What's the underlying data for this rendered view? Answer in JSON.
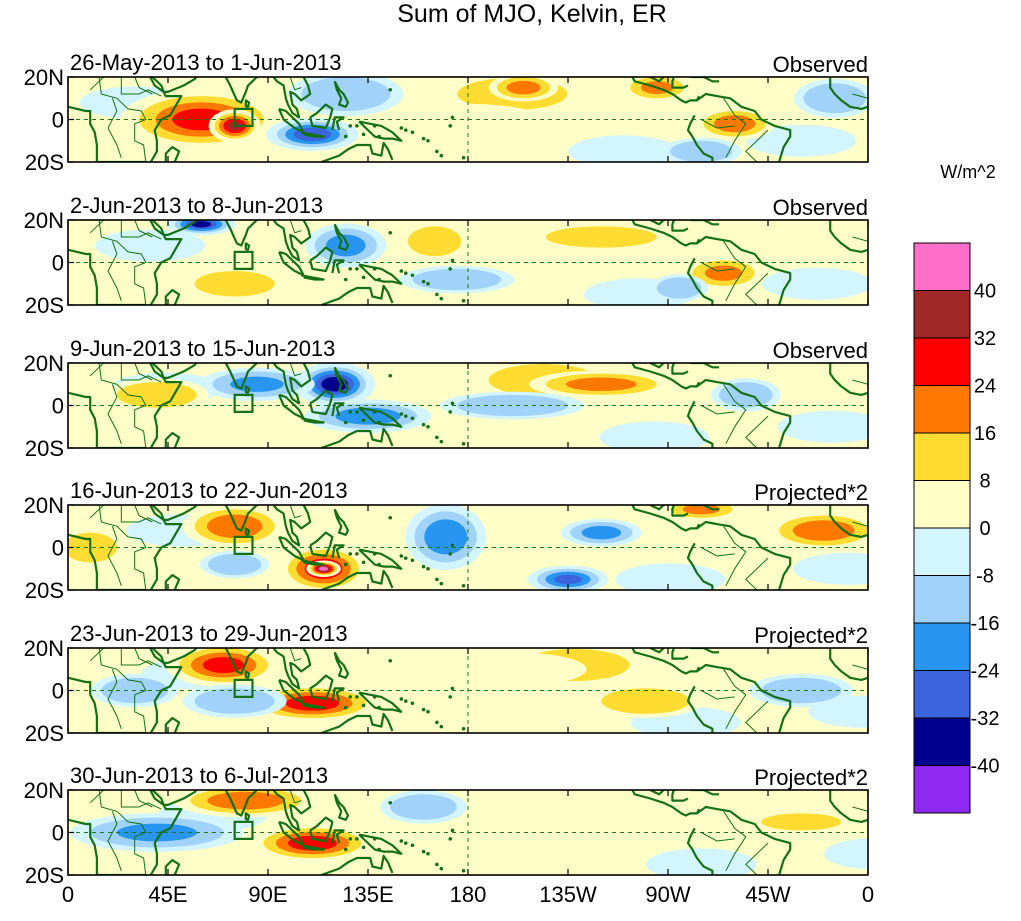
{
  "chart_data": {
    "type": "heatmap",
    "title": "Sum of MJO, Kelvin, ER",
    "units_label": "W/m^2",
    "lat_ticks": [
      "20N",
      "0",
      "20S"
    ],
    "lon_ticks": [
      "0",
      "45E",
      "90E",
      "135E",
      "180",
      "135W",
      "90W",
      "45W",
      "0"
    ],
    "lon_range": [
      0,
      360
    ],
    "lat_range": [
      -20,
      20
    ],
    "colorbar": {
      "levels": [
        -40,
        -32,
        -24,
        -16,
        -8,
        0,
        8,
        16,
        24,
        32,
        40
      ],
      "level_labels": [
        "40",
        "32",
        "24",
        "16",
        "8",
        "0",
        "-8",
        "-16",
        "-24",
        "-32",
        "-40"
      ],
      "colors": [
        "#8f28f0",
        "#00008f",
        "#3c64dc",
        "#2896f0",
        "#a0d2fa",
        "#d2f5ff",
        "#ffffc8",
        "#ffdc32",
        "#ff7800",
        "#ff0000",
        "#a02828",
        "#ff6ec8"
      ]
    },
    "box_marker": {
      "lon": [
        75,
        83
      ],
      "lat": [
        -3,
        5
      ]
    },
    "panels": [
      {
        "date_range": "26-May-2013 to 1-Jun-2013",
        "kind": "Observed",
        "anomalies": [
          {
            "lon": 60,
            "lat": 0,
            "rlon": 28,
            "rlat": 11,
            "value": 26
          },
          {
            "lon": 75,
            "lat": -3,
            "rlon": 9,
            "rlat": 6,
            "value": 33
          },
          {
            "lon": 110,
            "lat": -7,
            "rlon": 16,
            "rlat": 6,
            "value": -30
          },
          {
            "lon": 125,
            "lat": 12,
            "rlon": 20,
            "rlat": 8,
            "value": -12
          },
          {
            "lon": 205,
            "lat": 15,
            "rlon": 12,
            "rlat": 5,
            "value": 18
          },
          {
            "lon": 265,
            "lat": 15,
            "rlon": 12,
            "rlat": 5,
            "value": 16
          },
          {
            "lon": 300,
            "lat": -2,
            "rlon": 14,
            "rlat": 6,
            "value": 20
          },
          {
            "lon": 285,
            "lat": -15,
            "rlon": 14,
            "rlat": 5,
            "value": -12
          },
          {
            "lon": 345,
            "lat": 10,
            "rlon": 14,
            "rlat": 7,
            "value": -14
          },
          {
            "lon": 180,
            "lat": -3,
            "rlon": 30,
            "rlat": 8,
            "value": 6
          }
        ]
      },
      {
        "date_range": "2-Jun-2013 to 8-Jun-2013",
        "kind": "Observed",
        "anomalies": [
          {
            "lon": 60,
            "lat": 18,
            "rlon": 12,
            "rlat": 4,
            "value": -34
          },
          {
            "lon": 125,
            "lat": 8,
            "rlon": 14,
            "rlat": 8,
            "value": -18
          },
          {
            "lon": 165,
            "lat": 10,
            "rlon": 12,
            "rlat": 7,
            "value": 14
          },
          {
            "lon": 240,
            "lat": 12,
            "rlon": 25,
            "rlat": 5,
            "value": 12
          },
          {
            "lon": 175,
            "lat": -8,
            "rlon": 20,
            "rlat": 5,
            "value": -12
          },
          {
            "lon": 295,
            "lat": -5,
            "rlon": 14,
            "rlat": 6,
            "value": 16
          },
          {
            "lon": 275,
            "lat": -12,
            "rlon": 10,
            "rlat": 5,
            "value": -12
          },
          {
            "lon": 75,
            "lat": -10,
            "rlon": 18,
            "rlat": 6,
            "value": 8
          }
        ]
      },
      {
        "date_range": "9-Jun-2013 to 15-Jun-2013",
        "kind": "Observed",
        "anomalies": [
          {
            "lon": 120,
            "lat": 10,
            "rlon": 14,
            "rlat": 8,
            "value": -38
          },
          {
            "lon": 85,
            "lat": 10,
            "rlon": 20,
            "rlat": 6,
            "value": -16
          },
          {
            "lon": 135,
            "lat": -5,
            "rlon": 22,
            "rlat": 6,
            "value": -20
          },
          {
            "lon": 240,
            "lat": 10,
            "rlon": 25,
            "rlat": 5,
            "value": 18
          },
          {
            "lon": 200,
            "lat": 0,
            "rlon": 25,
            "rlat": 5,
            "value": -10
          },
          {
            "lon": 305,
            "lat": 5,
            "rlon": 12,
            "rlat": 6,
            "value": -12
          },
          {
            "lon": 40,
            "lat": 5,
            "rlon": 18,
            "rlat": 6,
            "value": 8
          }
        ]
      },
      {
        "date_range": "16-Jun-2013 to 22-Jun-2013",
        "kind": "Projected*2",
        "anomalies": [
          {
            "lon": 75,
            "lat": 10,
            "rlon": 18,
            "rlat": 8,
            "value": 22
          },
          {
            "lon": 115,
            "lat": -10,
            "rlon": 16,
            "rlat": 9,
            "value": 30
          },
          {
            "lon": 115,
            "lat": -10,
            "rlon": 6,
            "rlat": 3,
            "value": 44
          },
          {
            "lon": 170,
            "lat": 5,
            "rlon": 14,
            "rlat": 12,
            "value": -22
          },
          {
            "lon": 225,
            "lat": -15,
            "rlon": 14,
            "rlat": 5,
            "value": -25
          },
          {
            "lon": 240,
            "lat": 7,
            "rlon": 14,
            "rlat": 5,
            "value": -18
          },
          {
            "lon": 340,
            "lat": 8,
            "rlon": 20,
            "rlat": 7,
            "value": 22
          },
          {
            "lon": 285,
            "lat": 18,
            "rlon": 14,
            "rlat": 4,
            "value": 16
          },
          {
            "lon": 75,
            "lat": -8,
            "rlon": 12,
            "rlat": 5,
            "value": -14
          },
          {
            "lon": 10,
            "lat": 0,
            "rlon": 12,
            "rlat": 7,
            "value": 10
          }
        ]
      },
      {
        "date_range": "23-Jun-2013 to 29-Jun-2013",
        "kind": "Projected*2",
        "anomalies": [
          {
            "lon": 70,
            "lat": 12,
            "rlon": 20,
            "rlat": 8,
            "value": 26
          },
          {
            "lon": 110,
            "lat": -6,
            "rlon": 24,
            "rlat": 7,
            "value": 28
          },
          {
            "lon": 75,
            "lat": -5,
            "rlon": 18,
            "rlat": 6,
            "value": -14
          },
          {
            "lon": 30,
            "lat": 0,
            "rlon": 15,
            "rlat": 6,
            "value": -10
          },
          {
            "lon": 260,
            "lat": -5,
            "rlon": 20,
            "rlat": 6,
            "value": 12
          },
          {
            "lon": 330,
            "lat": 0,
            "rlon": 18,
            "rlat": 6,
            "value": -10
          },
          {
            "lon": 200,
            "lat": 10,
            "rlon": 25,
            "rlat": 6,
            "value": 5
          }
        ]
      },
      {
        "date_range": "30-Jun-2013 to 6-Jul-2013",
        "kind": "Projected*2",
        "anomalies": [
          {
            "lon": 80,
            "lat": 15,
            "rlon": 25,
            "rlat": 6,
            "value": 22
          },
          {
            "lon": 110,
            "lat": -5,
            "rlon": 22,
            "rlat": 7,
            "value": 28
          },
          {
            "lon": 40,
            "lat": 0,
            "rlon": 30,
            "rlat": 7,
            "value": -16
          },
          {
            "lon": 160,
            "lat": 12,
            "rlon": 15,
            "rlat": 6,
            "value": -10
          },
          {
            "lon": 330,
            "lat": 5,
            "rlon": 18,
            "rlat": 4,
            "value": 12
          },
          {
            "lon": 250,
            "lat": 8,
            "rlon": 25,
            "rlat": 5,
            "value": 6
          }
        ]
      }
    ]
  }
}
